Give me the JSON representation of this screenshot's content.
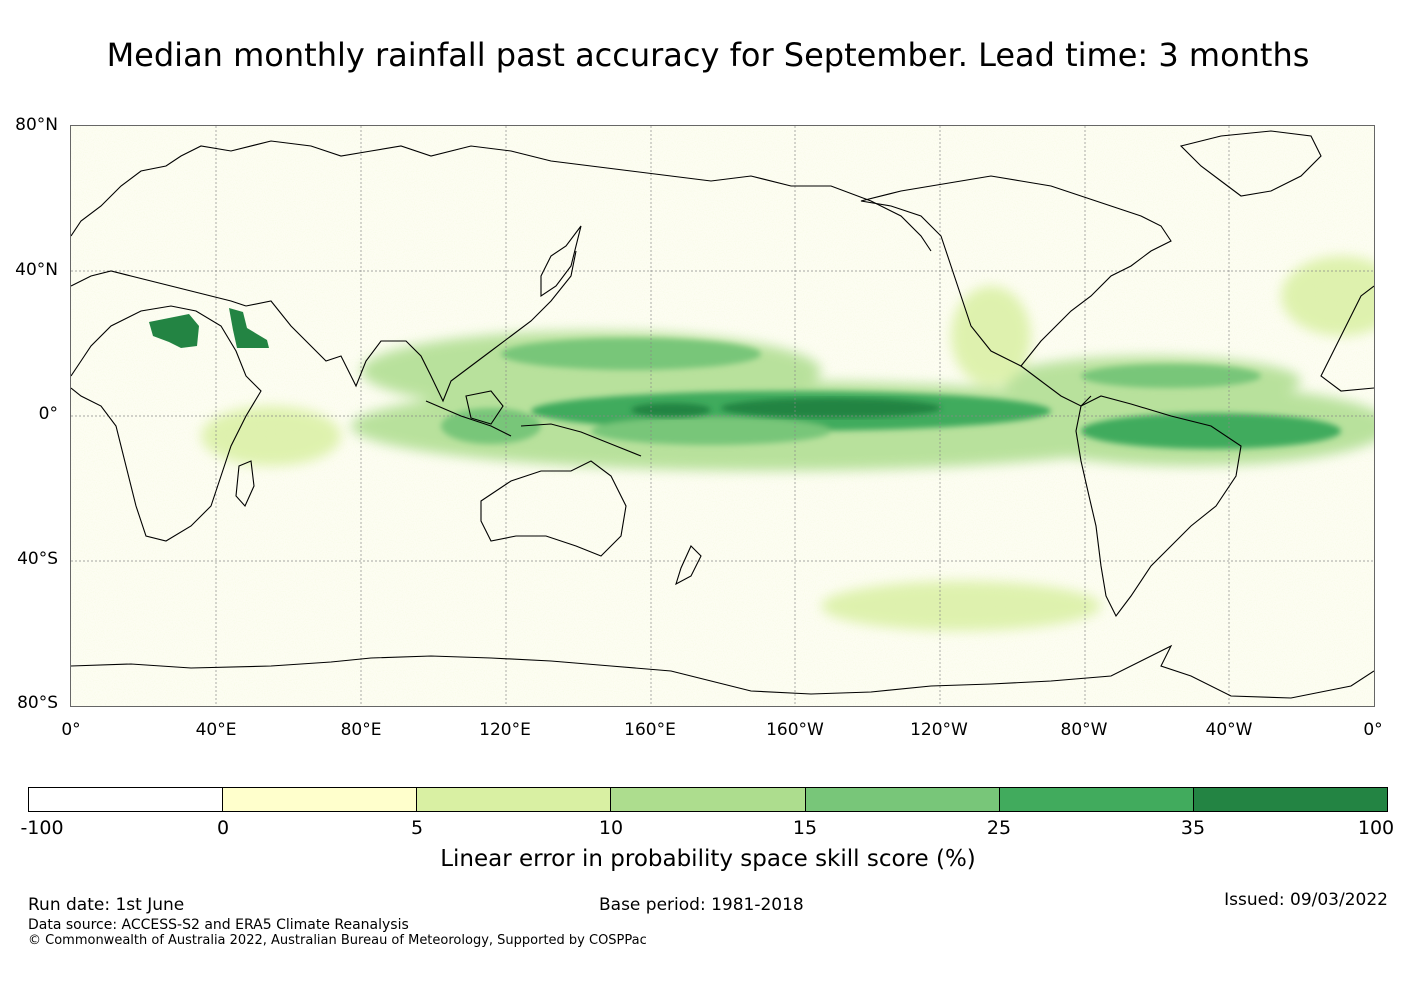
{
  "title": "Median monthly rainfall past accuracy for September. Lead time: 3 months",
  "map": {
    "lat_labels": [
      "80°N",
      "40°N",
      "0°",
      "40°S",
      "80°S"
    ],
    "lon_labels": [
      "0°",
      "40°E",
      "80°E",
      "120°E",
      "160°E",
      "160°W",
      "120°W",
      "80°W",
      "40°W",
      "0°"
    ],
    "background_color": "#fdfdf2",
    "coast_color": "#000000"
  },
  "colorbar": {
    "ticks": [
      "-100",
      "0",
      "5",
      "10",
      "15",
      "25",
      "35",
      "100"
    ],
    "colors": [
      "#ffffff",
      "#ffffcc",
      "#d9f0a3",
      "#addd8e",
      "#78c679",
      "#41ab5d",
      "#238443"
    ],
    "label": "Linear error in probability space skill score (%)"
  },
  "footer": {
    "run_date": "Run date: 1st June",
    "base_period": "Base period: 1981-2018",
    "issued": "Issued: 09/03/2022",
    "data_source": "Data source: ACCESS-S2 and ERA5 Climate Reanalysis",
    "copyright": "© Commonwealth of Australia 2022, Australian Bureau of Meteorology, Supported by COSPPac"
  }
}
